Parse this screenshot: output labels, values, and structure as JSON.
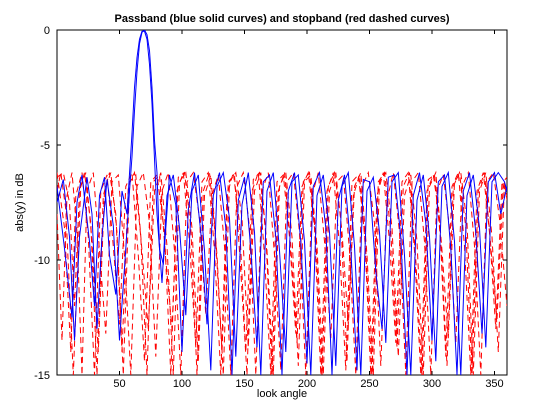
{
  "chart_data": {
    "type": "line",
    "title": "Passband (blue solid curves) and stopband (red dashed curves)",
    "xlabel": "look angle",
    "ylabel": "abs(y) in dB",
    "xlim": [
      0,
      360
    ],
    "ylim": [
      -15,
      0
    ],
    "xticks": [
      50,
      100,
      150,
      200,
      250,
      300,
      350
    ],
    "yticks": [
      0,
      -5,
      -10,
      -15
    ],
    "grid": false,
    "legend": "none",
    "series": [
      {
        "style": "solid",
        "color": "#0000ff",
        "x": [
          0,
          5,
          10,
          14,
          18,
          24,
          28,
          32,
          36,
          40,
          45,
          50,
          55,
          58,
          60,
          62,
          64,
          66,
          68,
          70,
          72,
          74,
          76,
          78,
          80,
          82,
          85,
          90,
          95,
          100,
          105,
          110,
          115,
          120,
          125,
          130,
          135,
          140,
          145,
          150,
          155,
          160,
          165,
          170,
          175,
          180,
          185,
          190,
          195,
          200,
          205,
          210,
          215,
          220,
          225,
          230,
          235,
          240,
          245,
          250,
          255,
          260,
          265,
          270,
          275,
          280,
          285,
          290,
          295,
          300,
          305,
          310,
          315,
          320,
          325,
          330,
          335,
          340,
          345,
          350,
          355,
          360
        ],
        "y": [
          -7.5,
          -6.5,
          -9,
          -13.5,
          -9,
          -6.4,
          -8,
          -13,
          -9,
          -6.5,
          -8.5,
          -13.5,
          -9.5,
          -7,
          -5.5,
          -3.5,
          -1.8,
          -0.6,
          -0.1,
          0,
          -0.2,
          -0.9,
          -2.5,
          -4.8,
          -6.2,
          -9.5,
          -10.2,
          -6.3,
          -7.6,
          -14,
          -7.8,
          -6.2,
          -8.8,
          -12.8,
          -7.2,
          -6.2,
          -8.6,
          -15,
          -7.4,
          -6.4,
          -9.5,
          -13.8,
          -6.6,
          -6.3,
          -9,
          -15,
          -7,
          -6.2,
          -9.2,
          -14.5,
          -6.8,
          -6.2,
          -8.6,
          -15,
          -7.4,
          -6.3,
          -9.5,
          -14.8,
          -6.5,
          -6.6,
          -10.5,
          -13,
          -6.4,
          -6.3,
          -9,
          -15,
          -7.2,
          -6.2,
          -8.4,
          -13.5,
          -6.6,
          -6.3,
          -9.5,
          -15,
          -7,
          -6.2,
          -8.8,
          -13.2,
          -6.6,
          -6.2,
          -8,
          -6.8
        ]
      },
      {
        "style": "solid",
        "color": "#0000ff",
        "x": [
          0,
          6,
          12,
          16,
          20,
          26,
          30,
          34,
          38,
          42,
          47,
          52,
          56,
          60,
          62,
          64,
          66,
          68,
          70,
          72,
          74,
          76,
          78,
          80,
          84,
          88,
          93,
          98,
          103,
          108,
          113,
          118,
          123,
          128,
          133,
          138,
          143,
          148,
          153,
          158,
          163,
          168,
          173,
          178,
          183,
          188,
          193,
          198,
          203,
          208,
          213,
          218,
          223,
          228,
          233,
          238,
          243,
          248,
          253,
          258,
          263,
          268,
          273,
          278,
          283,
          288,
          293,
          298,
          303,
          308,
          313,
          318,
          323,
          328,
          333,
          338,
          343,
          348,
          353,
          358,
          360
        ],
        "y": [
          -6.8,
          -9.5,
          -12.5,
          -7.5,
          -6.3,
          -9.2,
          -12,
          -7.2,
          -6.4,
          -9.8,
          -11.5,
          -7,
          -8,
          -4.5,
          -2.5,
          -1.2,
          -0.4,
          -0.05,
          -0.05,
          -0.4,
          -1.5,
          -3.2,
          -5.6,
          -8,
          -11,
          -7.2,
          -6.3,
          -8.6,
          -12.4,
          -7,
          -6.3,
          -9.6,
          -14.8,
          -6.8,
          -6.2,
          -8.2,
          -14.2,
          -7.6,
          -6.2,
          -8.8,
          -15,
          -7,
          -6.2,
          -9.6,
          -14,
          -6.6,
          -6.3,
          -9.2,
          -15,
          -7.2,
          -6.3,
          -8.8,
          -14.6,
          -6.8,
          -6.2,
          -9.4,
          -15,
          -7,
          -6.4,
          -8.8,
          -13.6,
          -6.6,
          -6.2,
          -9.8,
          -15,
          -7.4,
          -6.3,
          -9,
          -14.4,
          -6.8,
          -6.2,
          -9.2,
          -15,
          -7.2,
          -6.3,
          -8.6,
          -13.8,
          -6.6,
          -6.2,
          -6.6,
          -7
        ]
      },
      {
        "style": "dashed",
        "color": "#ff0000",
        "x": [
          0,
          5,
          10,
          14,
          18,
          22,
          27,
          32,
          37,
          42,
          47,
          52,
          57,
          62,
          67,
          72,
          77,
          82,
          87,
          92,
          97,
          102,
          107,
          112,
          117,
          122,
          127,
          132,
          137,
          142,
          147,
          152,
          157,
          162,
          167,
          172,
          177,
          182,
          187,
          192,
          197,
          202,
          207,
          212,
          217,
          222,
          227,
          232,
          237,
          242,
          247,
          252,
          257,
          262,
          267,
          272,
          277,
          282,
          287,
          292,
          297,
          302,
          307,
          312,
          317,
          322,
          327,
          332,
          337,
          342,
          347,
          352,
          357,
          360
        ],
        "y": [
          -6.4,
          -6.2,
          -7.5,
          -12,
          -7,
          -6.2,
          -8.4,
          -15,
          -7.2,
          -6.2,
          -8,
          -14,
          -6.8,
          -6.2,
          -9,
          -15,
          -6.6,
          -6.3,
          -10,
          -13,
          -6.4,
          -6.2,
          -8.6,
          -15,
          -7,
          -6.2,
          -9.2,
          -14,
          -6.6,
          -6.3,
          -10.5,
          -15,
          -6.5,
          -6.2,
          -8.8,
          -15,
          -7,
          -6.2,
          -9.4,
          -13.6,
          -6.6,
          -6.2,
          -9,
          -15,
          -6.8,
          -6.2,
          -8.2,
          -14.4,
          -7.2,
          -6.3,
          -9.6,
          -15,
          -6.6,
          -6.2,
          -8.8,
          -13.8,
          -6.8,
          -6.2,
          -10,
          -15,
          -6.5,
          -6.3,
          -9.2,
          -14.6,
          -6.8,
          -6.2,
          -8.6,
          -15,
          -7,
          -6.2,
          -9.4,
          -12.6,
          -6.6,
          -6.4
        ]
      },
      {
        "style": "dashed",
        "color": "#ff0000",
        "x": [
          0,
          4,
          8,
          12,
          16,
          20,
          24,
          29,
          34,
          39,
          44,
          49,
          54,
          59,
          64,
          69,
          74,
          79,
          84,
          89,
          94,
          99,
          104,
          109,
          114,
          119,
          124,
          129,
          134,
          139,
          144,
          149,
          154,
          159,
          164,
          169,
          174,
          179,
          184,
          189,
          194,
          199,
          204,
          209,
          214,
          219,
          224,
          229,
          234,
          239,
          244,
          249,
          254,
          259,
          264,
          269,
          274,
          279,
          284,
          289,
          294,
          299,
          304,
          309,
          314,
          319,
          324,
          329,
          334,
          339,
          344,
          349,
          354,
          360
        ],
        "y": [
          -8,
          -13.5,
          -7.2,
          -6.2,
          -8.8,
          -15,
          -7,
          -6.2,
          -9.6,
          -13.2,
          -6.6,
          -6.3,
          -9.8,
          -15,
          -6.8,
          -6.2,
          -8.4,
          -14.2,
          -7,
          -6.2,
          -9.6,
          -15,
          -6.6,
          -6.2,
          -8.2,
          -12.4,
          -7.2,
          -6.3,
          -9.4,
          -15,
          -6.8,
          -6.2,
          -8.6,
          -15,
          -7,
          -6.2,
          -9.8,
          -14.8,
          -6.6,
          -6.2,
          -8.8,
          -15,
          -7.2,
          -6.2,
          -9.2,
          -13.4,
          -6.6,
          -6.3,
          -9.6,
          -15,
          -6.8,
          -6.2,
          -8.4,
          -14.6,
          -7.4,
          -6.2,
          -8.8,
          -15,
          -6.6,
          -6.2,
          -9.2,
          -15,
          -7,
          -6.3,
          -8.6,
          -13.6,
          -6.8,
          -6.2,
          -9.4,
          -15,
          -6.6,
          -6.2,
          -8.2,
          -12
        ]
      },
      {
        "style": "dashed",
        "color": "#ff0000",
        "x": [
          0,
          6,
          11,
          15,
          20,
          25,
          30,
          35,
          40,
          45,
          50,
          55,
          60,
          65,
          70,
          75,
          80,
          86,
          91,
          96,
          101,
          106,
          111,
          116,
          121,
          126,
          131,
          136,
          141,
          146,
          151,
          156,
          161,
          166,
          171,
          176,
          181,
          186,
          191,
          196,
          201,
          206,
          211,
          216,
          221,
          226,
          231,
          236,
          241,
          246,
          251,
          256,
          261,
          266,
          271,
          276,
          281,
          286,
          291,
          296,
          301,
          306,
          311,
          316,
          321,
          326,
          331,
          336,
          341,
          346,
          351,
          356,
          360
        ],
        "y": [
          -6.2,
          -8.6,
          -14,
          -7.2,
          -6.2,
          -9,
          -15,
          -7,
          -6.3,
          -9.4,
          -12.8,
          -6.8,
          -6.2,
          -9.8,
          -14.4,
          -6.6,
          -6.3,
          -8.8,
          -15,
          -7,
          -6.2,
          -9.2,
          -13.8,
          -6.6,
          -6.2,
          -9.6,
          -15,
          -7.2,
          -6.2,
          -8.4,
          -14,
          -7,
          -6.2,
          -9.8,
          -15,
          -6.6,
          -6.3,
          -9,
          -13.2,
          -6.8,
          -6.2,
          -8.6,
          -15,
          -7,
          -6.2,
          -9.4,
          -14.8,
          -6.6,
          -6.3,
          -8.8,
          -15,
          -7.2,
          -6.2,
          -9.2,
          -13.6,
          -6.6,
          -6.2,
          -9.6,
          -15,
          -7,
          -6.3,
          -8.2,
          -14.2,
          -6.8,
          -6.2,
          -9.4,
          -15,
          -7,
          -6.2,
          -8.8,
          -13,
          -6.6,
          -7.2
        ]
      },
      {
        "style": "dashed",
        "color": "#ff0000",
        "x": [
          0,
          3,
          7,
          13,
          19,
          23,
          28,
          33,
          38,
          43,
          48,
          53,
          58,
          63,
          68,
          73,
          78,
          83,
          88,
          93,
          98,
          103,
          108,
          113,
          118,
          123,
          128,
          133,
          138,
          143,
          148,
          153,
          158,
          163,
          168,
          173,
          178,
          183,
          188,
          193,
          198,
          203,
          208,
          213,
          218,
          223,
          228,
          233,
          238,
          243,
          248,
          253,
          258,
          263,
          268,
          273,
          278,
          283,
          288,
          293,
          298,
          303,
          308,
          313,
          318,
          323,
          328,
          333,
          338,
          343,
          348,
          353,
          358,
          360
        ],
        "y": [
          -7,
          -6.2,
          -7.8,
          -15,
          -6.8,
          -6.2,
          -9.2,
          -14,
          -7,
          -6.2,
          -8.8,
          -15,
          -6.6,
          -6.3,
          -9.6,
          -13,
          -7,
          -6.2,
          -9.4,
          -15,
          -6.6,
          -6.2,
          -8.6,
          -14.4,
          -7.2,
          -6.3,
          -9.8,
          -15,
          -6.6,
          -6.2,
          -8.2,
          -13.8,
          -7,
          -6.2,
          -9.6,
          -15,
          -6.8,
          -6.2,
          -9,
          -14.6,
          -6.6,
          -6.3,
          -9.4,
          -15,
          -7,
          -6.2,
          -8.8,
          -12.8,
          -6.8,
          -6.2,
          -9.8,
          -15,
          -6.6,
          -6.2,
          -8.6,
          -14.2,
          -7.2,
          -6.3,
          -9.2,
          -15,
          -6.8,
          -6.2,
          -9.6,
          -13.4,
          -6.6,
          -6.2,
          -8.4,
          -15,
          -7,
          -6.2,
          -9,
          -14,
          -6.6,
          -7.4
        ]
      }
    ]
  }
}
